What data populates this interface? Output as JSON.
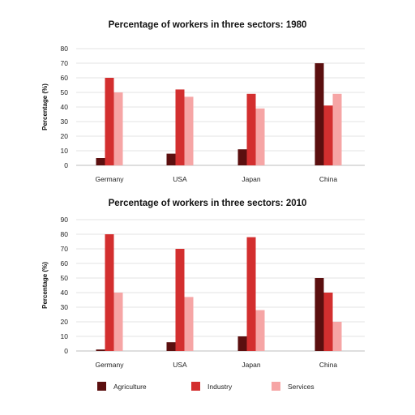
{
  "chart_data": [
    {
      "type": "bar",
      "title": "Percentage of workers in three sectors: 1980",
      "ylabel": "Percentage  (%)",
      "ylim": [
        0,
        80
      ],
      "yticks": [
        0,
        10,
        20,
        30,
        40,
        50,
        60,
        70,
        80
      ],
      "grid": true,
      "categories": [
        "Germany",
        "USA",
        "Japan",
        "China"
      ],
      "series": [
        {
          "name": "Agriculture",
          "values": [
            5,
            8,
            11,
            70
          ]
        },
        {
          "name": "Industry",
          "values": [
            60,
            52,
            49,
            41
          ]
        },
        {
          "name": "Services",
          "values": [
            50,
            47,
            39,
            49
          ]
        }
      ]
    },
    {
      "type": "bar",
      "title": "Percentage of workers in three sectors: 2010",
      "ylabel": "Percentage  (%)",
      "ylim": [
        0,
        90
      ],
      "yticks": [
        0,
        10,
        20,
        30,
        40,
        50,
        60,
        70,
        80,
        90
      ],
      "grid": true,
      "categories": [
        "Germany",
        "USA",
        "Japan",
        "China"
      ],
      "series": [
        {
          "name": "Agriculture",
          "values": [
            1,
            6,
            10,
            50
          ]
        },
        {
          "name": "Industry",
          "values": [
            80,
            70,
            78,
            40
          ]
        },
        {
          "name": "Services",
          "values": [
            40,
            37,
            28,
            20
          ]
        }
      ]
    }
  ],
  "legend": {
    "position": "bottom",
    "items": [
      {
        "label": "Agriculture",
        "color": "#5b0f0f"
      },
      {
        "label": "Industry",
        "color": "#d32f2f"
      },
      {
        "label": "Services",
        "color": "#f6a5a5"
      }
    ]
  },
  "colors": {
    "agriculture": "#5b0f0f",
    "industry": "#d32f2f",
    "services": "#f6a5a5"
  }
}
